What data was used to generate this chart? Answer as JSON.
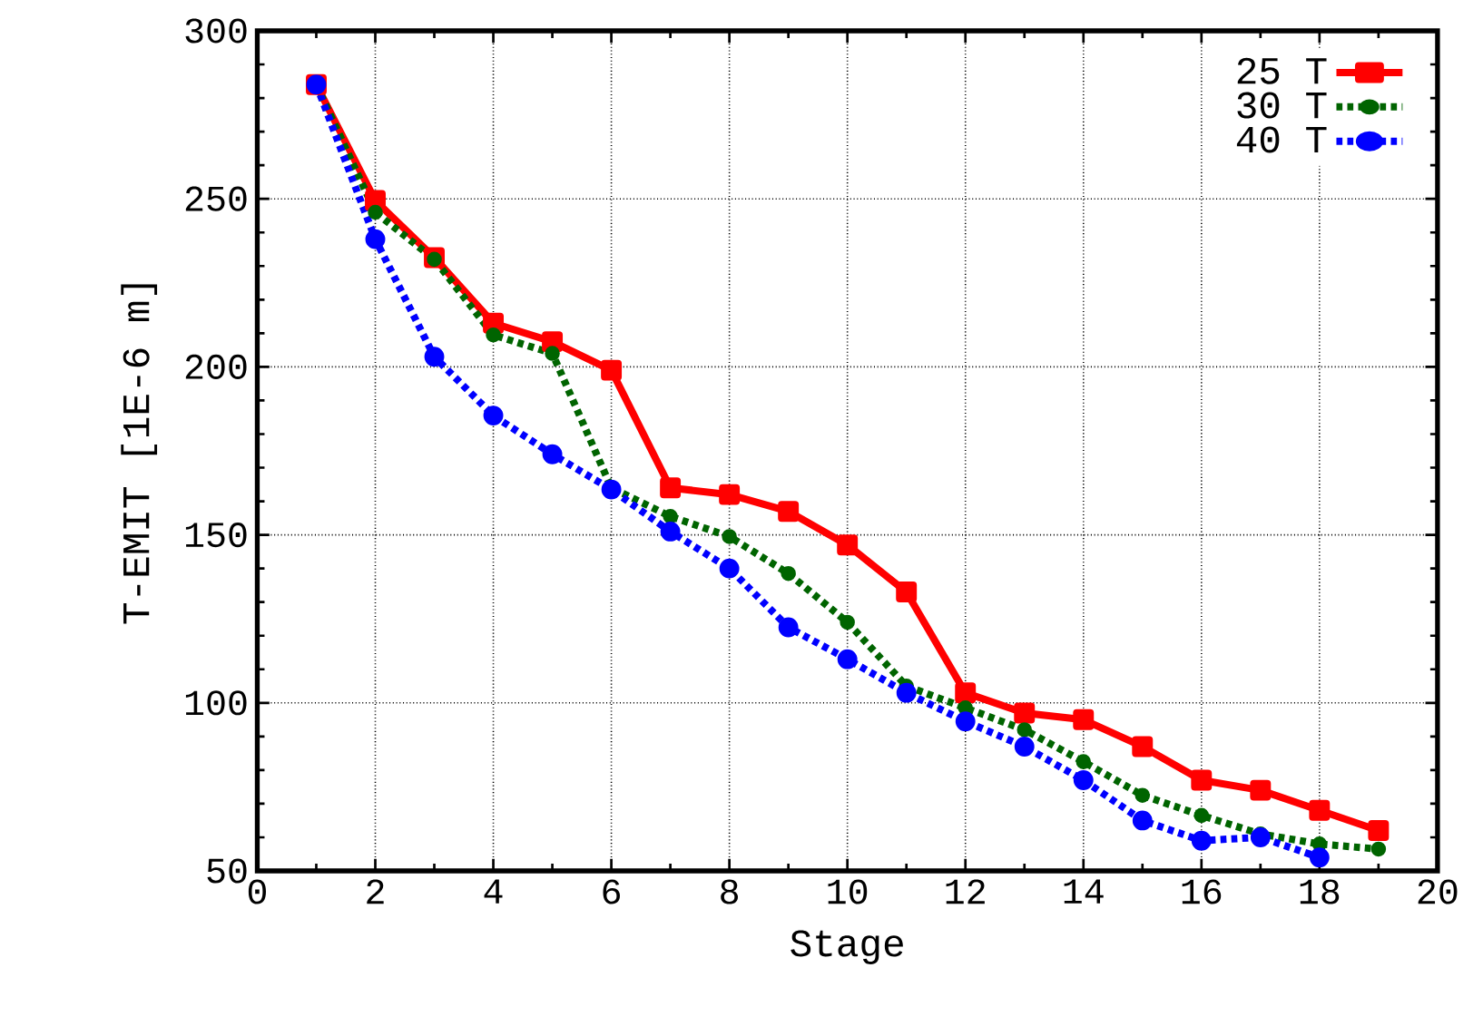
{
  "chart_data": {
    "type": "line",
    "xlabel": "Stage",
    "ylabel": "T-EMIT [1E-6 m]",
    "x": [
      1,
      2,
      3,
      4,
      5,
      6,
      7,
      8,
      9,
      10,
      11,
      12,
      13,
      14,
      15,
      16,
      17,
      18,
      19
    ],
    "series": [
      {
        "name": "25 T",
        "color": "#ff0000",
        "marker": "square",
        "line_style": "solid",
        "values": [
          284,
          249.5,
          232.5,
          213,
          207.5,
          199,
          164,
          162,
          157,
          147,
          133,
          103,
          97,
          95,
          87,
          77,
          74,
          68,
          62
        ]
      },
      {
        "name": "30 T",
        "color": "#006400",
        "marker": "circle",
        "line_style": "dotted",
        "values": [
          284,
          246,
          232,
          209.5,
          204,
          164,
          155.5,
          149.5,
          138.5,
          124,
          105,
          98.5,
          92,
          82.5,
          72.5,
          66.5,
          61,
          58,
          56.5
        ]
      },
      {
        "name": "40 T",
        "color": "#0000ff",
        "marker": "circle",
        "line_style": "dotted",
        "values": [
          284,
          238,
          203,
          185.5,
          174,
          163.5,
          151,
          140,
          122.5,
          113,
          103,
          94.5,
          87,
          77,
          65,
          59,
          60,
          54,
          null
        ]
      }
    ],
    "xlim": [
      0,
      20
    ],
    "xticks": [
      0,
      2,
      4,
      6,
      8,
      10,
      12,
      14,
      16,
      18,
      20
    ],
    "ylim": [
      50,
      300
    ],
    "yticks": [
      50,
      100,
      150,
      200,
      250,
      300
    ],
    "grid": true,
    "legend": "top right"
  }
}
